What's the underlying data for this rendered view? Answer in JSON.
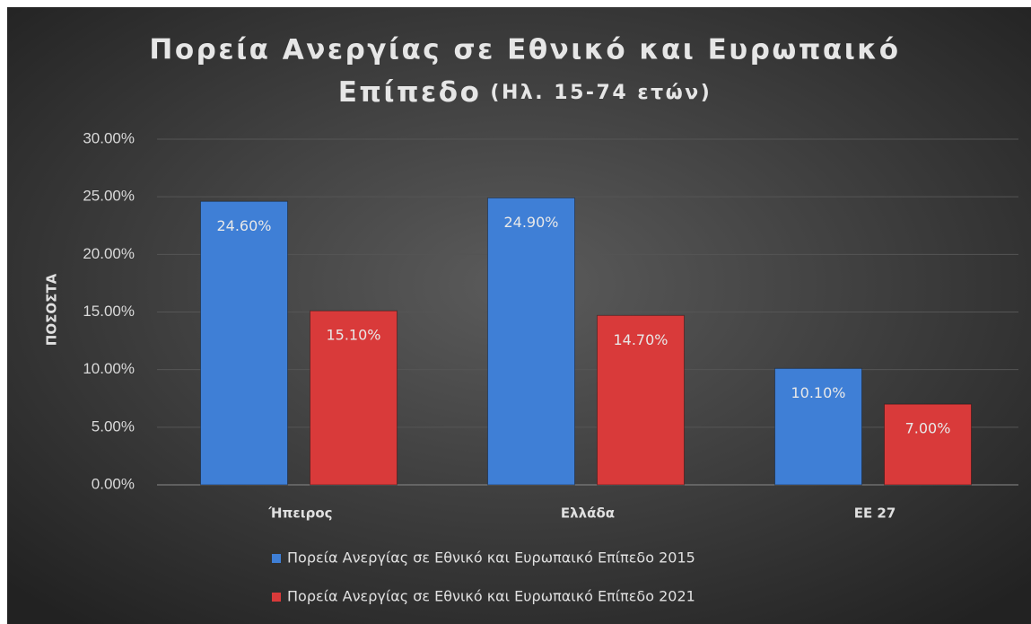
{
  "chart_data": {
    "type": "bar",
    "title": [
      "Πορεία Ανεργίας σε Εθνικό και Ευρωπαικό",
      "Επίπεδο"
    ],
    "subtitle": "(Ηλ. 15-74 ετών)",
    "y_label": "ΠΟΣΟΣΤΑ",
    "categories": [
      "Ήπειρος",
      "Ελλάδα",
      "ΕΕ 27"
    ],
    "series": [
      {
        "name": "Πορεία Ανεργίας σε Εθνικό και Ευρωπαικό Επίπεδο 2015",
        "color": "#3f7fd6",
        "values": [
          24.6,
          24.9,
          10.1
        ],
        "value_labels": [
          "24.60%",
          "24.90%",
          "10.10%"
        ]
      },
      {
        "name": "Πορεία Ανεργίας σε Εθνικό και Ευρωπαικό Επίπεδο 2021",
        "color": "#d93a3a",
        "values": [
          15.1,
          14.7,
          7.0
        ],
        "value_labels": [
          "15.10%",
          "14.70%",
          "7.00%"
        ]
      }
    ],
    "ylim": [
      0,
      30
    ],
    "yticks": [
      {
        "value": 0,
        "label": "0.00%"
      },
      {
        "value": 5,
        "label": "5.00%"
      },
      {
        "value": 10,
        "label": "10.00%"
      },
      {
        "value": 15,
        "label": "15.00%"
      },
      {
        "value": 20,
        "label": "20.00%"
      },
      {
        "value": 25,
        "label": "25.00%"
      },
      {
        "value": 30,
        "label": "30.00%"
      }
    ],
    "grid": true,
    "legend": "bottom"
  }
}
